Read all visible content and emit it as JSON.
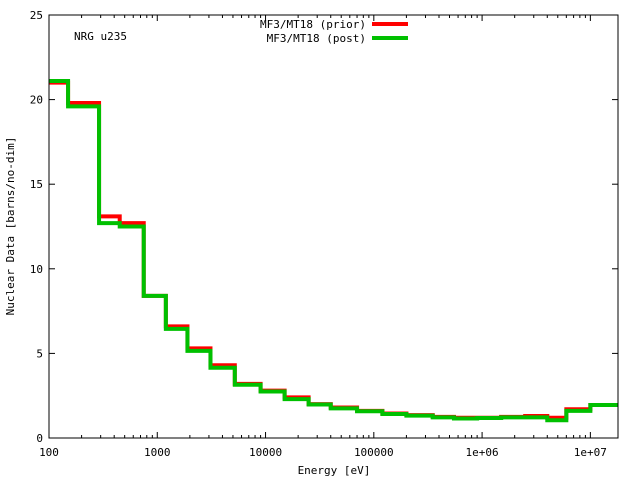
{
  "chart_data": {
    "type": "line",
    "step": true,
    "annotation": "NRG u235",
    "xlabel": "Energy [eV]",
    "ylabel": "Nuclear Data [barns/no-dim]",
    "xscale": "log",
    "xlim": [
      100,
      18000000
    ],
    "ylim": [
      0,
      25
    ],
    "xticks": [
      {
        "value": 100,
        "label": "100"
      },
      {
        "value": 1000,
        "label": "1000"
      },
      {
        "value": 10000,
        "label": "10000"
      },
      {
        "value": 100000,
        "label": "100000"
      },
      {
        "value": 1000000,
        "label": "1e+06"
      },
      {
        "value": 10000000,
        "label": "1e+07"
      }
    ],
    "yticks": [
      {
        "value": 0,
        "label": "0"
      },
      {
        "value": 5,
        "label": "5"
      },
      {
        "value": 10,
        "label": "10"
      },
      {
        "value": 15,
        "label": "15"
      },
      {
        "value": 20,
        "label": "20"
      },
      {
        "value": 25,
        "label": "25"
      }
    ],
    "grid": false,
    "legend_position": "top-center",
    "series": [
      {
        "name": "MF3/MT18 (prior)",
        "color": "#ff0000",
        "edges": [
          100,
          150,
          290,
          450,
          750,
          1200,
          1900,
          3100,
          5200,
          9000,
          15000,
          25000,
          40000,
          70000,
          120000,
          200000,
          350000,
          550000,
          900000,
          1500000,
          2500000,
          4000000,
          6000000,
          10000000,
          18000000
        ],
        "values": [
          21.0,
          19.8,
          13.1,
          12.7,
          8.4,
          6.6,
          5.3,
          4.3,
          3.2,
          2.8,
          2.4,
          2.0,
          1.8,
          1.6,
          1.45,
          1.35,
          1.25,
          1.2,
          1.2,
          1.25,
          1.3,
          1.2,
          1.7,
          1.95
        ]
      },
      {
        "name": "MF3/MT18 (post)",
        "color": "#00c000",
        "edges": [
          100,
          150,
          290,
          450,
          750,
          1200,
          1900,
          3100,
          5200,
          9000,
          15000,
          25000,
          40000,
          70000,
          120000,
          200000,
          350000,
          550000,
          900000,
          1500000,
          2500000,
          4000000,
          6000000,
          10000000,
          18000000
        ],
        "values": [
          21.1,
          19.6,
          12.7,
          12.5,
          8.4,
          6.45,
          5.15,
          4.15,
          3.15,
          2.75,
          2.3,
          1.98,
          1.75,
          1.58,
          1.42,
          1.32,
          1.22,
          1.15,
          1.18,
          1.22,
          1.22,
          1.05,
          1.6,
          1.95
        ]
      }
    ]
  }
}
